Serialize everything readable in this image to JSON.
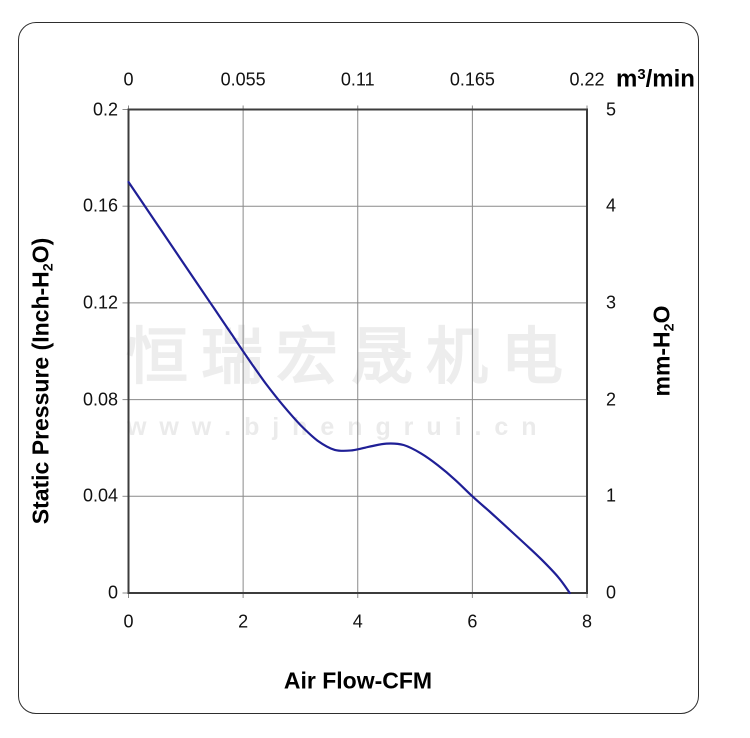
{
  "watermark": {
    "line1": "恒瑞宏晟机电",
    "line2": "w w w . b j h e n g r u i . c n",
    "color": "#ededed"
  },
  "chart_data": {
    "type": "line",
    "grid": true,
    "plot_border_color": "#3c3c3c",
    "grid_color": "#8a8a8a",
    "axes": {
      "top": {
        "unit_parts": {
          "pre": "m",
          "sup": "3",
          "post": "/min"
        },
        "ticks": [
          "0",
          "0.055",
          "0.11",
          "0.165",
          "0.22"
        ],
        "range": [
          0,
          0.22
        ]
      },
      "bottom": {
        "label": "Air Flow-CFM",
        "ticks": [
          "0",
          "2",
          "4",
          "6",
          "8"
        ],
        "range": [
          0,
          8
        ]
      },
      "left": {
        "label_parts": {
          "pre": "Static Pressure (Inch-H",
          "sub": "2",
          "post": "O)"
        },
        "ticks": [
          "0.2",
          "0.16",
          "0.12",
          "0.08",
          "0.04",
          "0"
        ],
        "range": [
          0,
          0.2
        ]
      },
      "right": {
        "label_parts": {
          "pre": "mm-H",
          "sub": "2",
          "post": "O"
        },
        "ticks": [
          "5",
          "4",
          "3",
          "2",
          "1",
          "0"
        ],
        "range": [
          0,
          5
        ]
      }
    },
    "series": [
      {
        "name": "static-pressure-curve",
        "color": "#1f1f96",
        "x_unit": "CFM",
        "y_unit": "Inch-H2O",
        "points": [
          [
            0.0,
            0.17
          ],
          [
            0.3,
            0.1595
          ],
          [
            0.6,
            0.149
          ],
          [
            0.9,
            0.1385
          ],
          [
            1.2,
            0.128
          ],
          [
            1.5,
            0.1175
          ],
          [
            1.8,
            0.107
          ],
          [
            2.1,
            0.0965
          ],
          [
            2.4,
            0.0865
          ],
          [
            2.7,
            0.0775
          ],
          [
            3.0,
            0.0695
          ],
          [
            3.3,
            0.063
          ],
          [
            3.6,
            0.0592
          ],
          [
            3.9,
            0.059
          ],
          [
            4.2,
            0.0605
          ],
          [
            4.5,
            0.0618
          ],
          [
            4.8,
            0.0612
          ],
          [
            5.1,
            0.0578
          ],
          [
            5.4,
            0.0528
          ],
          [
            5.7,
            0.0468
          ],
          [
            6.0,
            0.04
          ],
          [
            6.3,
            0.0337
          ],
          [
            6.6,
            0.0272
          ],
          [
            6.9,
            0.0207
          ],
          [
            7.2,
            0.014
          ],
          [
            7.5,
            0.0065
          ],
          [
            7.7,
            0.0
          ]
        ]
      }
    ]
  }
}
